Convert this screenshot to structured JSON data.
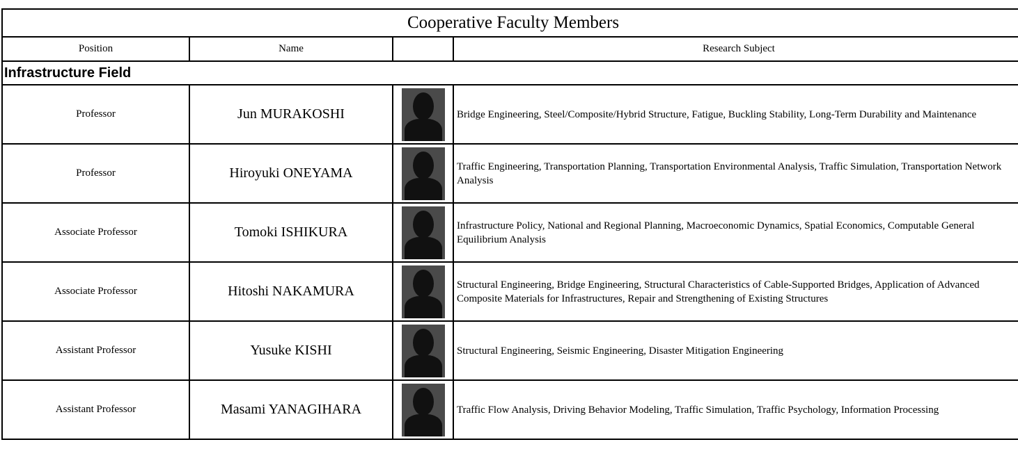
{
  "table": {
    "title": "Cooperative Faculty Members",
    "headers": {
      "position": "Position",
      "name": "Name",
      "subject": "Research Subject"
    },
    "section": "Infrastructure Field",
    "rows": [
      {
        "position": "Professor",
        "name": "Jun MURAKOSHI",
        "subject": "Bridge Engineering, Steel/Composite/Hybrid Structure, Fatigue, Buckling Stability, Long-Term Durability and Maintenance"
      },
      {
        "position": "Professor",
        "name": "Hiroyuki  ONEYAMA",
        "subject": "Traffic Engineering, Transportation Planning, Transportation Environmental Analysis, Traffic Simulation, Transportation Network Analysis"
      },
      {
        "position": "Associate Professor",
        "name": "Tomoki ISHIKURA",
        "subject": "Infrastructure Policy, National and Regional Planning, Macroeconomic Dynamics, Spatial Economics, Computable General Equilibrium Analysis"
      },
      {
        "position": "Associate Professor",
        "name": "Hitoshi NAKAMURA",
        "subject": "Structural Engineering, Bridge Engineering, Structural Characteristics of Cable-Supported Bridges, Application of Advanced Composite Materials for Infrastructures, Repair and Strengthening of Existing Structures"
      },
      {
        "position": "Assistant Professor",
        "name": "Yusuke KISHI",
        "subject": "Structural Engineering, Seismic Engineering, Disaster Mitigation Engineering"
      },
      {
        "position": "Assistant Professor",
        "name": "Masami YANAGIHARA",
        "subject": "Traffic Flow Analysis, Driving Behavior Modeling, Traffic Simulation, Traffic Psychology, Information Processing"
      }
    ]
  }
}
